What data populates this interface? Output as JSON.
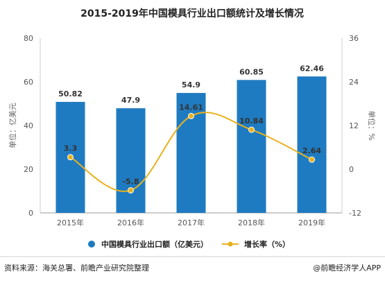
{
  "chart_data": {
    "type": "bar",
    "title": "2015-2019年中国模具行业出口额统计及增长情况",
    "categories": [
      "2015年",
      "2016年",
      "2017年",
      "2018年",
      "2019年"
    ],
    "series": [
      {
        "name": "中国模具行业出口额（亿美元）",
        "type": "bar",
        "axis": "left",
        "values": [
          50.82,
          47.9,
          54.9,
          60.85,
          62.46
        ],
        "labels": [
          "50.82",
          "47.9",
          "54.9",
          "60.85",
          "62.46"
        ],
        "color": "#1f7bc1"
      },
      {
        "name": "增长率（%）",
        "type": "line",
        "axis": "right",
        "values": [
          3.3,
          -5.8,
          14.61,
          10.84,
          2.64
        ],
        "labels": [
          "3.3",
          "-5.8",
          "14.61",
          "10.84",
          "2.64"
        ],
        "color": "#e8b11c"
      }
    ],
    "ylabel": "单位：亿美元",
    "y2label": "单位：%",
    "ylim": [
      0,
      80
    ],
    "y2lim": [
      -12,
      36
    ],
    "yticks": [
      "0",
      "20",
      "40",
      "60",
      "80"
    ],
    "y2ticks": [
      "-12",
      "0",
      "12",
      "24",
      "36"
    ],
    "grid": false,
    "legend": "bottom"
  },
  "footer": {
    "source": "资料来源：海关总署、前瞻产业研究院整理",
    "brand": "@前瞻经济学人APP"
  }
}
